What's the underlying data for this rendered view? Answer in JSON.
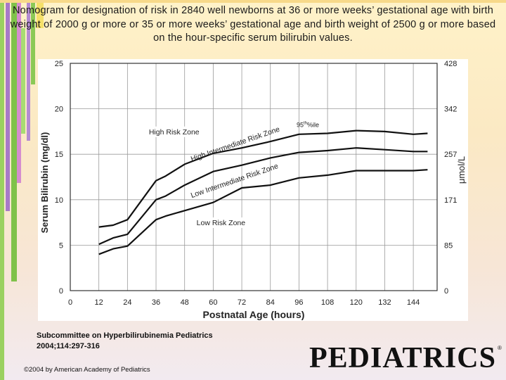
{
  "slide": {
    "title": "Nomogram for designation of risk in 2840 well newborns at 36 or more weeks’ gestational age with birth weight of 2000 g or more or 35 or more weeks’ gestational age and birth weight of 2500 g or more based on the hour-specific serum bilirubin values.",
    "citation": "Subcommittee on Hyperbilirubinemia Pediatrics 2004;114:297-316",
    "copyright": "©2004 by American Academy of Pediatrics",
    "logo": "PEDIATRICS",
    "logo_mark": "®"
  },
  "colors": {
    "decor_green": "#7fc24a",
    "decor_purple": "#8f5fb8",
    "decor_pink": "#d58ccf"
  },
  "chart_data": {
    "type": "line",
    "xlabel": "Postnatal Age (hours)",
    "ylabel": "Serum Bilirubin (mg/dl)",
    "y2label": "μmol/L",
    "x_ticks": [
      0,
      12,
      24,
      36,
      48,
      60,
      72,
      84,
      96,
      108,
      120,
      132,
      144
    ],
    "y_ticks": [
      0,
      5,
      10,
      15,
      20,
      25
    ],
    "y2_ticks": [
      0,
      85,
      171,
      257,
      342,
      428
    ],
    "xlim": [
      0,
      154
    ],
    "ylim": [
      0,
      25
    ],
    "grid": true,
    "series": [
      {
        "name": "95th %ile",
        "x": [
          12,
          18,
          24,
          36,
          40,
          48,
          60,
          72,
          84,
          96,
          108,
          120,
          132,
          144,
          150
        ],
        "y": [
          7.0,
          7.2,
          7.8,
          12.1,
          12.6,
          13.9,
          15.1,
          15.7,
          16.4,
          17.2,
          17.3,
          17.6,
          17.5,
          17.2,
          17.3
        ]
      },
      {
        "name": "",
        "x": [
          12,
          18,
          24,
          36,
          40,
          48,
          60,
          72,
          84,
          96,
          108,
          120,
          132,
          144,
          150
        ],
        "y": [
          5.1,
          5.8,
          6.2,
          10.0,
          10.4,
          11.6,
          13.1,
          13.8,
          14.6,
          15.2,
          15.4,
          15.7,
          15.5,
          15.3,
          15.3
        ]
      },
      {
        "name": "",
        "x": [
          12,
          18,
          24,
          36,
          40,
          48,
          60,
          72,
          84,
          96,
          108,
          120,
          132,
          144,
          150
        ],
        "y": [
          4.0,
          4.6,
          4.9,
          7.8,
          8.2,
          8.8,
          9.7,
          11.3,
          11.6,
          12.4,
          12.7,
          13.2,
          13.2,
          13.2,
          13.3
        ]
      }
    ],
    "annotations": [
      {
        "text": "High Risk Zone",
        "x": 33,
        "y": 17.2,
        "rotate": 0
      },
      {
        "text": "High Intermediate Risk Zone",
        "x": 51,
        "y": 14.2,
        "rotate": -19
      },
      {
        "text": "Low Intermediate Risk Zone",
        "x": 51,
        "y": 10.2,
        "rotate": -19
      },
      {
        "text": "Low Risk Zone",
        "x": 53,
        "y": 7.2,
        "rotate": 0
      }
    ],
    "percentile_label": {
      "text": "95",
      "sup": "th",
      "suffix": "%ile",
      "x": 95,
      "y": 18.0
    }
  }
}
